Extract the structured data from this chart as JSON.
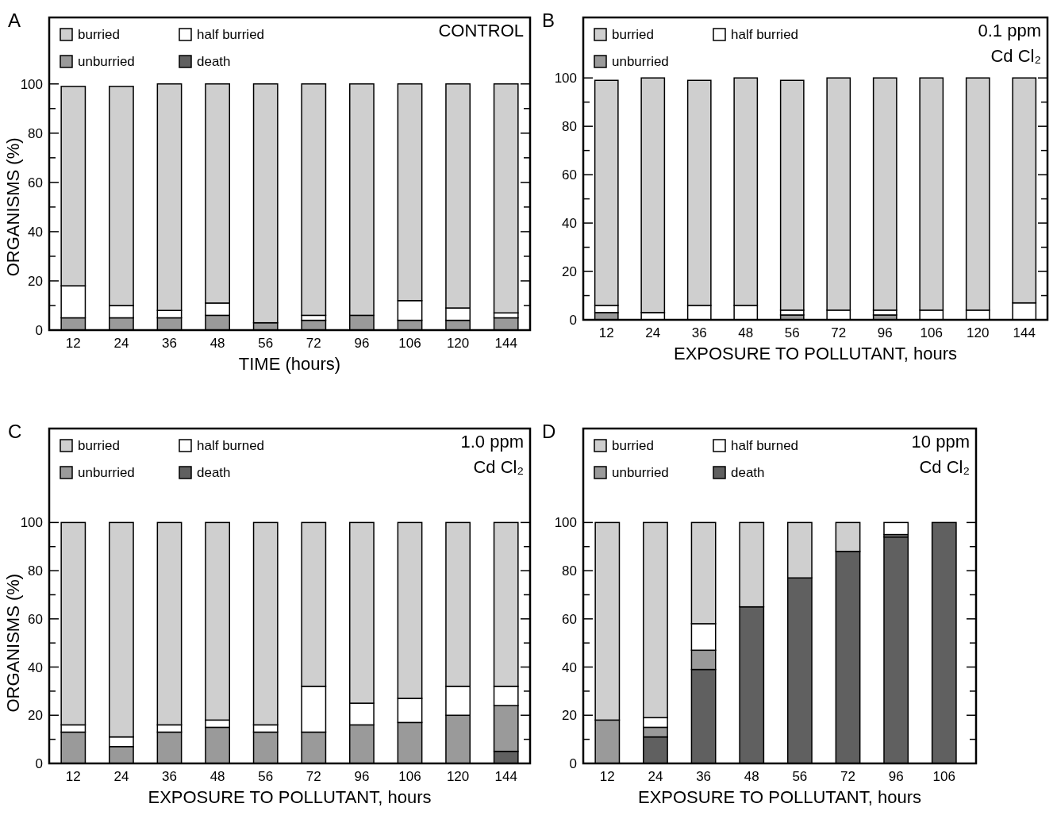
{
  "chart_data": [
    {
      "type": "bar",
      "stacked": true,
      "title": "A",
      "annotations": [
        "CONTROL"
      ],
      "xlabel": "TIME (hours)",
      "ylabel": "ORGANISMS (%)",
      "legend": "top left",
      "categories": [
        "12",
        "24",
        "36",
        "48",
        "56",
        "72",
        "96",
        "106",
        "120",
        "144"
      ],
      "ylim": [
        0,
        127
      ],
      "yticks": [
        0,
        {
          "value": 10,
          "label": null
        },
        20,
        {
          "value": 30,
          "label": null
        },
        40,
        {
          "value": 50,
          "label": null
        },
        60,
        {
          "value": 70,
          "label": null
        },
        80,
        {
          "value": 90,
          "label": null
        },
        100
      ],
      "series": [
        {
          "name": "death",
          "color": "#606060",
          "values": [
            0,
            0,
            0,
            0,
            0,
            0,
            0,
            0,
            0,
            0
          ]
        },
        {
          "name": "unburried",
          "color": "#9a9a9a",
          "values": [
            5,
            5,
            5,
            6,
            3,
            4,
            6,
            4,
            4,
            5
          ]
        },
        {
          "name": "half burried",
          "color": "#ffffff",
          "values": [
            13,
            5,
            3,
            5,
            0,
            2,
            0,
            8,
            5,
            2
          ]
        },
        {
          "name": "burried",
          "color": "#cfcfcf",
          "values": [
            81,
            89,
            92,
            89,
            97,
            94,
            94,
            88,
            91,
            93
          ]
        }
      ]
    },
    {
      "type": "bar",
      "stacked": true,
      "title": "B",
      "annotations": [
        "0.1 ppm",
        "Cd Cl₂"
      ],
      "xlabel": "EXPOSURE TO POLLUTANT, hours",
      "legend": "top left",
      "categories": [
        "12",
        "24",
        "36",
        "48",
        "56",
        "72",
        "96",
        "106",
        "120",
        "144"
      ],
      "ylim": [
        0,
        125
      ],
      "yticks": [
        0,
        {
          "value": 10,
          "label": null
        },
        20,
        {
          "value": 30,
          "label": null
        },
        40,
        {
          "value": 50,
          "label": null
        },
        60,
        {
          "value": 70,
          "label": null
        },
        80,
        {
          "value": 90,
          "label": null
        },
        100
      ],
      "series": [
        {
          "name": "unburried",
          "color": "#9a9a9a",
          "values": [
            3,
            0,
            0,
            0,
            2,
            0,
            2,
            0,
            0,
            0
          ]
        },
        {
          "name": "half burried",
          "color": "#ffffff",
          "values": [
            3,
            3,
            6,
            6,
            2,
            4,
            2,
            4,
            4,
            7
          ]
        },
        {
          "name": "burried",
          "color": "#cfcfcf",
          "values": [
            93,
            97,
            93,
            94,
            95,
            96,
            96,
            96,
            96,
            93
          ]
        }
      ]
    },
    {
      "type": "bar",
      "stacked": true,
      "title": "C",
      "annotations": [
        "1.0 ppm",
        "Cd Cl₂"
      ],
      "xlabel": "EXPOSURE TO POLLUTANT, hours",
      "ylabel": "ORGANISMS (%)",
      "legend": "top left",
      "categories": [
        "12",
        "24",
        "36",
        "48",
        "56",
        "72",
        "96",
        "106",
        "120",
        "144"
      ],
      "ylim": [
        0,
        139
      ],
      "yticks": [
        0,
        {
          "value": 10,
          "label": null
        },
        20,
        {
          "value": 30,
          "label": null
        },
        40,
        {
          "value": 50,
          "label": null
        },
        60,
        {
          "value": 70,
          "label": null
        },
        80,
        {
          "value": 90,
          "label": null
        },
        100
      ],
      "series": [
        {
          "name": "death",
          "color": "#606060",
          "values": [
            0,
            0,
            0,
            0,
            0,
            0,
            0,
            0,
            0,
            5
          ]
        },
        {
          "name": "unburried",
          "color": "#9a9a9a",
          "values": [
            13,
            7,
            13,
            15,
            13,
            13,
            16,
            17,
            20,
            19
          ]
        },
        {
          "name": "half burned",
          "color": "#ffffff",
          "values": [
            3,
            4,
            3,
            3,
            3,
            19,
            9,
            10,
            12,
            8
          ]
        },
        {
          "name": "burried",
          "color": "#cfcfcf",
          "values": [
            84,
            89,
            84,
            82,
            84,
            68,
            75,
            73,
            68,
            68
          ]
        }
      ]
    },
    {
      "type": "bar",
      "stacked": true,
      "title": "D",
      "annotations": [
        "10 ppm",
        "Cd Cl₂"
      ],
      "xlabel": "EXPOSURE TO POLLUTANT, hours",
      "legend": "top left",
      "categories": [
        "12",
        "24",
        "36",
        "48",
        "56",
        "72",
        "96",
        "106"
      ],
      "ylim": [
        0,
        139
      ],
      "yticks": [
        0,
        {
          "value": 10,
          "label": null
        },
        20,
        {
          "value": 30,
          "label": null
        },
        40,
        {
          "value": 50,
          "label": null
        },
        60,
        {
          "value": 70,
          "label": null
        },
        80,
        {
          "value": 90,
          "label": null
        },
        100
      ],
      "series": [
        {
          "name": "death",
          "color": "#606060",
          "values": [
            0,
            11,
            39,
            65,
            77,
            88,
            94,
            100
          ]
        },
        {
          "name": "unburried",
          "color": "#9a9a9a",
          "values": [
            18,
            4,
            8,
            0,
            0,
            0,
            1,
            0
          ]
        },
        {
          "name": "half burned",
          "color": "#ffffff",
          "values": [
            0,
            4,
            11,
            0,
            0,
            0,
            5,
            0
          ]
        },
        {
          "name": "burried",
          "color": "#cfcfcf",
          "values": [
            82,
            81,
            42,
            35,
            23,
            12,
            0,
            0
          ]
        }
      ]
    }
  ]
}
